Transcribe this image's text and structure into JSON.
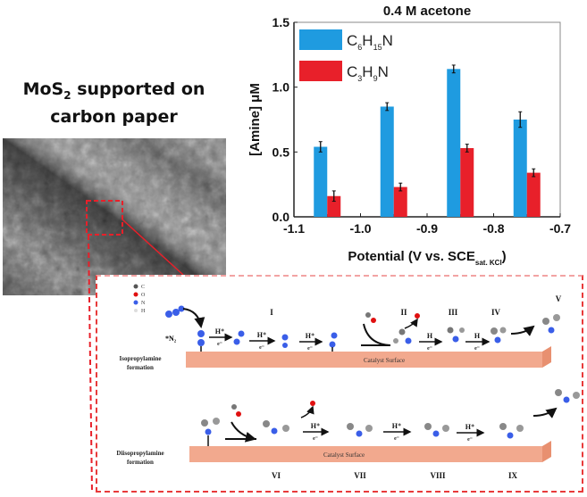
{
  "figure": {
    "sem_panel": {
      "title_main": "MoS",
      "title_sub": "2",
      "title_rest": " supported on",
      "title_line2": "carbon paper"
    },
    "scheme": {
      "atom_legend": [
        "C",
        "O",
        "N",
        "H"
      ],
      "atom_colors": {
        "C": "#555555",
        "O": "#e01010",
        "N": "#3a5ee8",
        "H": "#dddddd"
      },
      "row1_label_line1": "Isopropylamine",
      "row1_label_line2": "formation",
      "row2_label_line1": "Diisopropylamine",
      "row2_label_line2": "formation",
      "surface_label": "Catalyst Surface",
      "n2_label": "*N₂",
      "row1_steps": [
        "I",
        "II",
        "III",
        "IV",
        "V"
      ],
      "row2_steps": [
        "VI",
        "VII",
        "VIII",
        "IX"
      ],
      "arrow_top": "H⁺",
      "arrow_top_alt": "H",
      "arrow_bottom": "e⁻",
      "slab_color": "#f2a98e"
    }
  },
  "chart_data": {
    "type": "bar",
    "title": "0.4 M acetone",
    "xlabel": "Potential (V vs. SCE",
    "xlabel_sub": "sat. KCl",
    "xlabel_end": ")",
    "ylabel": "[Amine] μM",
    "xlim": [
      -1.1,
      -0.7
    ],
    "ylim": [
      0.0,
      1.5
    ],
    "xticks": [
      "-1.1",
      "-1.0",
      "-0.9",
      "-0.8",
      "-0.7"
    ],
    "yticks": [
      "0.0",
      "0.5",
      "1.0",
      "1.5"
    ],
    "categories": [
      -1.05,
      -0.95,
      -0.85,
      -0.75
    ],
    "legend_position": "top-left",
    "series": [
      {
        "name": "C6H15N",
        "label_parts": [
          "C",
          "6",
          "H",
          "15",
          "N"
        ],
        "color": "#1f9be0",
        "values": [
          0.54,
          0.85,
          1.14,
          0.75
        ],
        "errors": [
          0.04,
          0.03,
          0.03,
          0.06
        ]
      },
      {
        "name": "C3H9N",
        "label_parts": [
          "C",
          "3",
          "H",
          "9",
          "N"
        ],
        "color": "#e8202a",
        "values": [
          0.16,
          0.23,
          0.53,
          0.34
        ],
        "errors": [
          0.04,
          0.03,
          0.03,
          0.03
        ]
      }
    ]
  }
}
